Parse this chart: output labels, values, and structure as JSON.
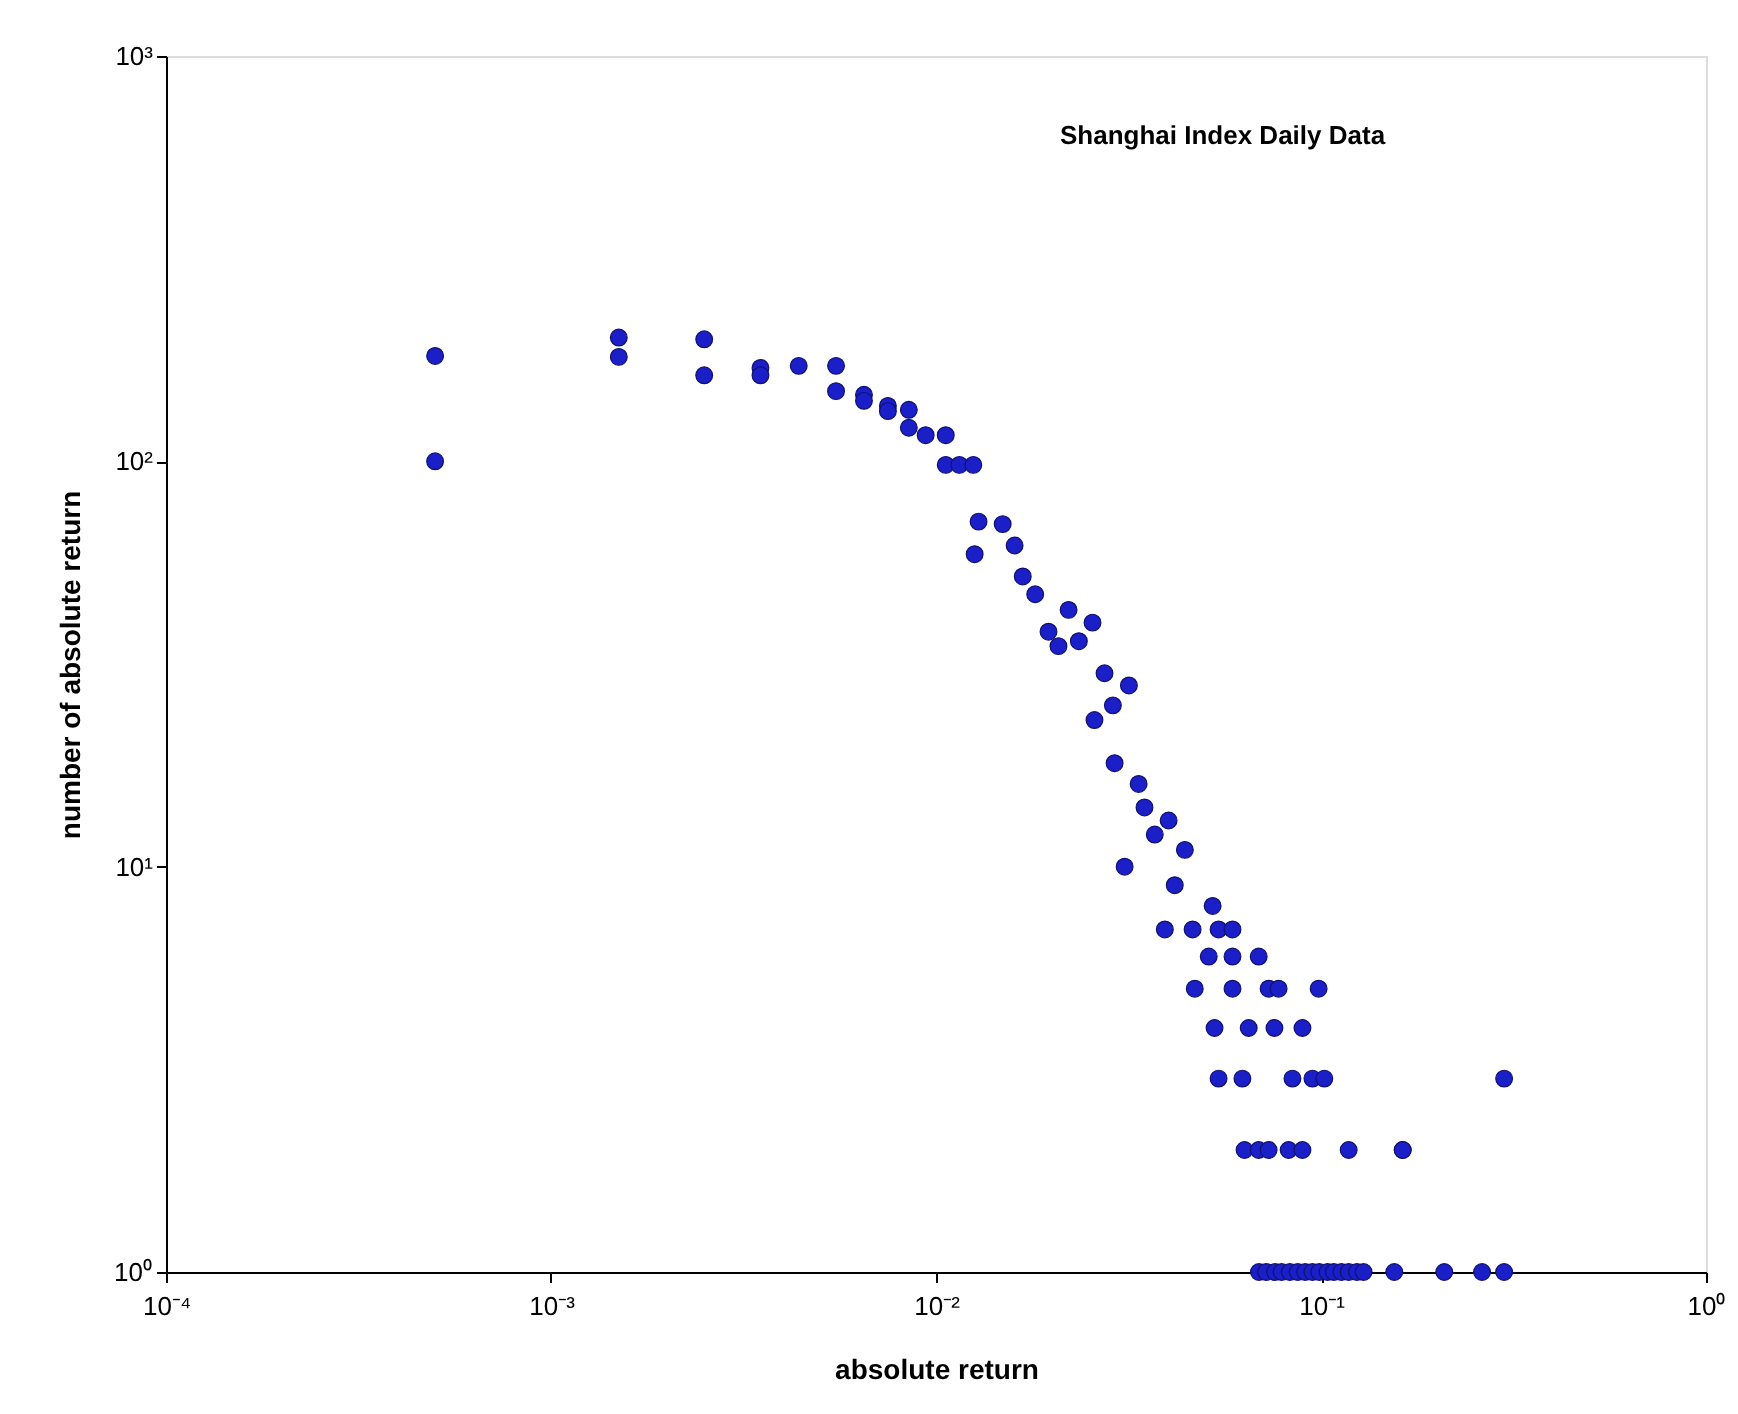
{
  "chart_data": {
    "type": "scatter",
    "annotations": [
      "Shanghai Index Daily Data"
    ],
    "xlabel": "absolute return",
    "ylabel": "number of absolute return",
    "log": "xy",
    "grid": false,
    "marker": "circle",
    "xlim": [
      0.0001,
      1
    ],
    "ylim": [
      1,
      1000
    ],
    "xticks": [
      {
        "value": 0.0001,
        "label": "10⁻⁴"
      },
      {
        "value": 0.001,
        "label": "10⁻³"
      },
      {
        "value": 0.01,
        "label": "10⁻²"
      },
      {
        "value": 0.1,
        "label": "10⁻¹"
      },
      {
        "value": 1,
        "label": "10⁰"
      }
    ],
    "yticks": [
      {
        "value": 1,
        "label": "10⁰"
      },
      {
        "value": 10,
        "label": "10¹"
      },
      {
        "value": 100,
        "label": "10²"
      },
      {
        "value": 1000,
        "label": "10³"
      }
    ],
    "series": [
      {
        "color": "#1a1fc8",
        "x": [
          0.0005,
          0.0005,
          0.0015,
          0.0015,
          0.0025,
          0.0025,
          0.0035,
          0.0035,
          0.0044,
          0.0055,
          0.0055,
          0.0065,
          0.0065,
          0.0075,
          0.0075,
          0.0085,
          0.0085,
          0.0094,
          0.0106,
          0.0106,
          0.0115,
          0.0125,
          0.0129,
          0.0126,
          0.0149,
          0.016,
          0.0168,
          0.0181,
          0.0221,
          0.0196,
          0.0208,
          0.0255,
          0.0235,
          0.0274,
          0.0317,
          0.0258,
          0.0288,
          0.0291,
          0.0336,
          0.0348,
          0.0402,
          0.037,
          0.0443,
          0.0309,
          0.0417,
          0.0523,
          0.0393,
          0.0464,
          0.0542,
          0.0589,
          0.0511,
          0.0589,
          0.0689,
          0.047,
          0.0589,
          0.0731,
          0.0776,
          0.0986,
          0.0529,
          0.0649,
          0.0757,
          0.0895,
          0.0542,
          0.0625,
          0.0843,
          0.095,
          0.102,
          0.163,
          0.299,
          0.0633,
          0.0689,
          0.0731,
          0.0824,
          0.0895,
          0.118,
          0.163,
          0.069,
          0.072,
          0.076,
          0.079,
          0.083,
          0.087,
          0.091,
          0.095,
          0.099,
          0.104,
          0.108,
          0.113,
          0.118,
          0.124,
          0.129,
          0.155,
          0.209,
          0.262,
          0.299
        ],
        "values": [
          182,
          100,
          202,
          181,
          200,
          163,
          170,
          163,
          172,
          172,
          149,
          146,
          141,
          137,
          133,
          134,
          121,
          116,
          116,
          98,
          98,
          98,
          71,
          59,
          70,
          62,
          52,
          47,
          43,
          38,
          35,
          40,
          36,
          30,
          28,
          23,
          25,
          18,
          16,
          14,
          13,
          12,
          11,
          10,
          9,
          8,
          7,
          7,
          7,
          7,
          6,
          6,
          6,
          5,
          5,
          5,
          5,
          5,
          4,
          4,
          4,
          4,
          3,
          3,
          3,
          3,
          3,
          2,
          3,
          2,
          2,
          2,
          2,
          2,
          2,
          2,
          1,
          1,
          1,
          1,
          1,
          1,
          1,
          1,
          1,
          1,
          1,
          1,
          1,
          1,
          1,
          1,
          1,
          1,
          1
        ]
      }
    ]
  }
}
